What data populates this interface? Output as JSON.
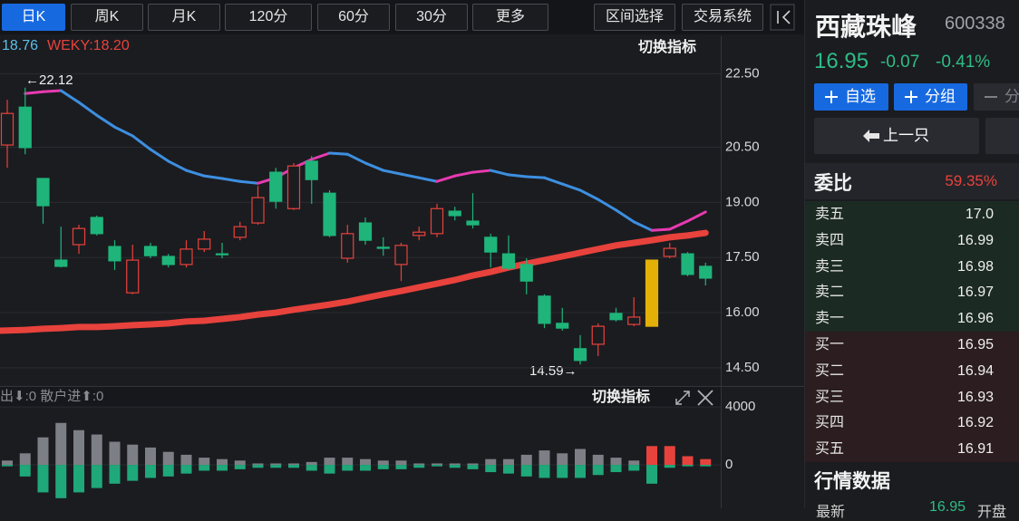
{
  "toolbar": {
    "periods": [
      "日K",
      "周K",
      "月K",
      "120分",
      "60分",
      "30分",
      "更多"
    ],
    "tools": [
      "区间选择",
      "交易系统"
    ]
  },
  "chart_data": [
    {
      "type": "candlestick",
      "switch_label": "切换指标",
      "annotations": [
        "←22.12",
        "14.59→"
      ],
      "open": [
        20.56,
        21.59,
        19.65,
        17.43,
        17.85,
        18.59,
        17.8,
        16.54,
        17.8,
        17.53,
        17.31,
        17.73,
        17.6,
        18.05,
        18.44,
        19.82,
        18.83,
        20.12,
        19.25,
        17.48,
        18.44,
        17.78,
        17.31,
        18.1,
        18.15,
        18.76,
        18.49,
        18.05,
        17.6,
        17.31,
        16.45,
        15.71,
        15.02,
        15.14,
        15.98,
        15.68,
        15.63,
        17.53,
        17.6,
        17.26
      ],
      "high": [
        21.79,
        22.12,
        19.65,
        18.34,
        18.39,
        18.64,
        17.97,
        17.85,
        17.9,
        17.6,
        17.97,
        18.22,
        17.9,
        18.47,
        19.45,
        19.94,
        20.07,
        20.26,
        19.33,
        18.39,
        18.59,
        18.05,
        17.9,
        18.34,
        18.96,
        18.88,
        19.25,
        18.15,
        18.1,
        17.48,
        16.5,
        16.13,
        15.39,
        15.71,
        16.13,
        16.42,
        17.43,
        17.9,
        17.65,
        17.36
      ],
      "low": [
        19.94,
        20.31,
        18.42,
        17.23,
        17.6,
        18.1,
        17.16,
        16.5,
        17.48,
        17.23,
        17.23,
        17.65,
        17.48,
        17.97,
        18.39,
        18.83,
        18.79,
        18.96,
        18.05,
        17.36,
        17.85,
        17.55,
        16.86,
        17.97,
        18.05,
        18.51,
        18.29,
        17.23,
        17.16,
        16.5,
        15.58,
        15.51,
        14.59,
        14.82,
        15.76,
        15.63,
        15.63,
        17.48,
        16.99,
        16.74
      ],
      "close": [
        21.42,
        20.49,
        18.91,
        17.26,
        18.29,
        18.15,
        17.41,
        17.43,
        17.55,
        17.31,
        17.73,
        18.0,
        17.58,
        18.34,
        19.13,
        19.03,
        19.99,
        19.62,
        18.1,
        18.15,
        17.97,
        17.75,
        17.83,
        18.19,
        18.83,
        18.64,
        18.39,
        17.65,
        17.21,
        16.86,
        15.71,
        15.58,
        14.7,
        15.63,
        15.81,
        15.88,
        17.43,
        17.75,
        17.04,
        16.94
      ],
      "up_color": "#e8423c",
      "down_color": "#1fb57a",
      "highlight": {
        "index": 36,
        "color": "#e3b008"
      },
      "series": [
        {
          "name": "18.76",
          "color": "#3d8fe0",
          "rise_color": "#e83ab0",
          "values": [
            null,
            21.96,
            22.01,
            22.04,
            21.72,
            21.37,
            21.05,
            20.81,
            20.44,
            20.12,
            19.87,
            19.72,
            19.65,
            19.57,
            19.52,
            19.67,
            19.94,
            20.17,
            20.34,
            20.31,
            20.07,
            19.87,
            19.77,
            19.67,
            19.57,
            19.72,
            19.82,
            19.87,
            19.75,
            19.7,
            19.67,
            19.5,
            19.33,
            19.08,
            18.79,
            18.47,
            18.24,
            18.27,
            18.49,
            18.74
          ]
        },
        {
          "name": "WEKY:18.20",
          "color": "#e8423c",
          "values": [
            15.51,
            15.53,
            15.56,
            15.58,
            15.61,
            15.61,
            15.63,
            15.66,
            15.68,
            15.71,
            15.76,
            15.78,
            15.83,
            15.88,
            15.95,
            16.0,
            16.08,
            16.15,
            16.22,
            16.3,
            16.4,
            16.5,
            16.59,
            16.69,
            16.79,
            16.89,
            17.01,
            17.11,
            17.23,
            17.33,
            17.43,
            17.53,
            17.63,
            17.73,
            17.83,
            17.9,
            17.97,
            18.05,
            18.1,
            18.17
          ]
        }
      ],
      "ylim": [
        14.03,
        23.47
      ],
      "yticks": [
        {
          "value": 22.5,
          "label": "22.50"
        },
        {
          "value": 20.5,
          "label": "20.50"
        },
        {
          "value": 19,
          "label": "19.00"
        },
        {
          "value": 17.5,
          "label": "17.50"
        },
        {
          "value": 16,
          "label": "16.00"
        },
        {
          "value": 14.5,
          "label": "14.50"
        }
      ],
      "grid": true
    },
    {
      "type": "bar",
      "title": "出⬇:0 散户进⬆:0",
      "switch_label": "切换指标",
      "series": [
        {
          "color": "#7d7f86",
          "values": [
            300,
            800,
            1900,
            2900,
            2400,
            2100,
            1600,
            1400,
            1200,
            900,
            700,
            500,
            400,
            300,
            100,
            100,
            100,
            200,
            500,
            500,
            400,
            300,
            300,
            100,
            100,
            100,
            100,
            400,
            400,
            700,
            1000,
            800,
            1100,
            700,
            500,
            300,
            null,
            null,
            null,
            null
          ]
        },
        {
          "color": "#e8423c",
          "values": [
            null,
            null,
            null,
            null,
            null,
            null,
            null,
            null,
            null,
            null,
            null,
            null,
            null,
            null,
            null,
            null,
            null,
            null,
            null,
            null,
            null,
            null,
            null,
            null,
            null,
            null,
            null,
            null,
            null,
            null,
            null,
            null,
            null,
            null,
            null,
            null,
            1300,
            1300,
            600,
            400
          ]
        },
        {
          "color": "#1fa87a",
          "values": [
            -100,
            -800,
            -1900,
            -2300,
            -1900,
            -1600,
            -1300,
            -1100,
            -900,
            -800,
            -600,
            -400,
            -400,
            -300,
            -200,
            -200,
            -200,
            -400,
            -600,
            -400,
            -400,
            -300,
            -300,
            -200,
            -100,
            -200,
            -300,
            -500,
            -600,
            -800,
            -900,
            -900,
            -900,
            -700,
            -500,
            -400,
            -1300,
            -200,
            -100,
            -100
          ]
        }
      ],
      "ylim": [
        -3000,
        5200
      ],
      "yticks": [
        4000,
        0
      ],
      "grid": true
    }
  ],
  "quote": {
    "name": "西藏珠峰",
    "code": "600338",
    "price": "16.95",
    "change": "-0.07",
    "change_pct": "-0.41%"
  },
  "buttons": {
    "watch": "自选",
    "group": "分组",
    "more": "分",
    "prev": "上一只"
  },
  "order_book": {
    "title": "委比",
    "ratio": "59.35%",
    "rows": [
      [
        "卖五",
        "17.0"
      ],
      [
        "卖四",
        "16.99"
      ],
      [
        "卖三",
        "16.98"
      ],
      [
        "卖二",
        "16.97"
      ],
      [
        "卖一",
        "16.96"
      ],
      [
        "买一",
        "16.95"
      ],
      [
        "买二",
        "16.94"
      ],
      [
        "买三",
        "16.93"
      ],
      [
        "买四",
        "16.92"
      ],
      [
        "买五",
        "16.91"
      ]
    ]
  },
  "market_data": {
    "title": "行情数据",
    "latest_label": "最新",
    "latest": "16.95",
    "open_label": "开盘"
  }
}
